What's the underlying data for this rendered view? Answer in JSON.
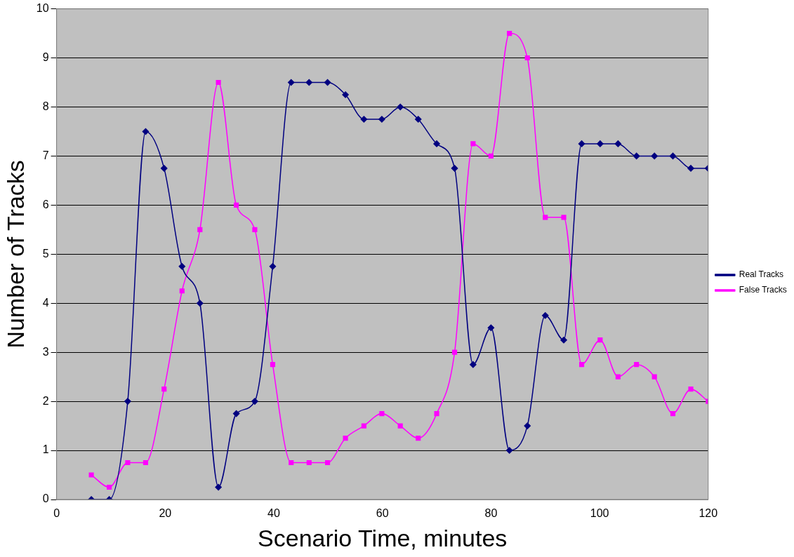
{
  "chart_data": {
    "type": "line",
    "xlabel": "Scenario Time, minutes",
    "ylabel": "Number of Tracks",
    "xlim": [
      0,
      120
    ],
    "xticks": [
      0,
      20,
      40,
      60,
      80,
      100,
      120
    ],
    "ylim": [
      0,
      10
    ],
    "yticks": [
      0,
      1,
      2,
      3,
      4,
      5,
      6,
      7,
      8,
      9,
      10
    ],
    "grid": "y",
    "legend": "right",
    "x": [
      6.4,
      9.7,
      13.1,
      16.4,
      19.8,
      23.1,
      26.4,
      29.8,
      33.1,
      36.5,
      39.8,
      43.2,
      46.5,
      49.9,
      53.2,
      56.6,
      59.9,
      63.3,
      66.6,
      70.0,
      73.3,
      76.7,
      80.0,
      83.4,
      86.7,
      90.0,
      93.4,
      96.7,
      100.1,
      103.4,
      106.8,
      110.1,
      113.5,
      116.8,
      120
    ],
    "series": [
      {
        "name": "Real Tracks",
        "color": "#000080",
        "marker": "diamond",
        "values": [
          0,
          0,
          2,
          7.5,
          6.75,
          4.75,
          4,
          0.25,
          1.75,
          2,
          4.75,
          8.5,
          8.5,
          8.5,
          8.25,
          7.75,
          7.75,
          8,
          7.75,
          7.25,
          6.75,
          2.75,
          3.5,
          1,
          1.5,
          3.75,
          3.25,
          7.25,
          7.25,
          7.25,
          7,
          7,
          7,
          6.75,
          6.75
        ]
      },
      {
        "name": "False Tracks",
        "color": "#ff00ff",
        "marker": "square",
        "values": [
          0.5,
          0.25,
          0.75,
          0.75,
          2.25,
          4.25,
          5.5,
          8.5,
          6,
          5.5,
          2.75,
          0.75,
          0.75,
          0.75,
          1.25,
          1.5,
          1.75,
          1.5,
          1.25,
          1.75,
          3,
          7.25,
          7,
          9.5,
          9,
          5.75,
          5.75,
          2.75,
          3.25,
          2.5,
          2.75,
          2.5,
          1.75,
          2.25,
          2
        ]
      }
    ]
  }
}
